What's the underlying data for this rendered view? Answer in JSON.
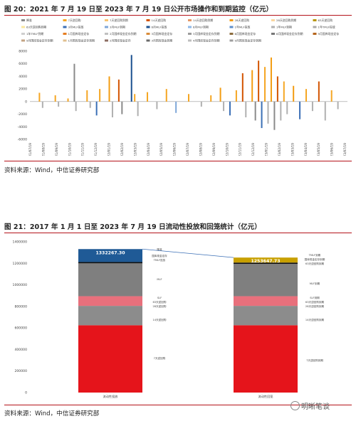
{
  "fig20": {
    "title": "图 20：2021 年 7 月 19 日至 2023 年 7 月 19 日公开市场操作和到期监控（亿元）",
    "source": "资料来源：Wind，中信证券研究部"
  },
  "fig21": {
    "title": "图 21：2017 年 1 月 1 日至 2023 年 7 月 19 日流动性投放和回笼统计（亿元）",
    "source": "资料来源：Wind，中信证券研究部"
  },
  "watermark": {
    "text": "明晰笔谈"
  },
  "chart_data": [
    {
      "type": "bar",
      "title": "",
      "legend_position": "top",
      "legend": [
        {
          "name": "降准",
          "color": "#8a8a8a"
        },
        {
          "name": "7天逆回购",
          "color": "#f5a623"
        },
        {
          "name": "7天逆回购到期",
          "color": "#f8c471"
        },
        {
          "name": "14天逆回购",
          "color": "#d35400"
        },
        {
          "name": "14天逆回购到期",
          "color": "#e59866"
        },
        {
          "name": "28天逆回购",
          "color": "#f39c12"
        },
        {
          "name": "28天逆回购到期",
          "color": "#fad7a0"
        },
        {
          "name": "63天逆回购",
          "color": "#b7950b"
        },
        {
          "name": "63天逆回购到期",
          "color": "#f9e79f"
        },
        {
          "name": "3月MLF投放",
          "color": "#3b6fb6"
        },
        {
          "name": "3月MLF到期",
          "color": "#7fa7d9"
        },
        {
          "name": "6月MLF投放",
          "color": "#1a4f8f"
        },
        {
          "name": "6月MLF到期",
          "color": "#8fb8e8"
        },
        {
          "name": "1年MLF投放",
          "color": "#5d8fcb"
        },
        {
          "name": "1年MLF到期",
          "color": "#b0b0b0"
        },
        {
          "name": "1年TMLF投放",
          "color": "#a9a9a9"
        },
        {
          "name": "1年TMLF到期",
          "color": "#cfcfcf"
        },
        {
          "name": "1月国库现金定存",
          "color": "#e67e22"
        },
        {
          "name": "2月国库现金定存到期",
          "color": "#c0c0c0"
        },
        {
          "name": "3月国库现金定存",
          "color": "#d98c3a"
        },
        {
          "name": "3月国库现金定存到期",
          "color": "#9c9c9c"
        },
        {
          "name": "6月国库现金定存",
          "color": "#8c6d3f"
        },
        {
          "name": "6月国库现金定存到期",
          "color": "#777777"
        },
        {
          "name": "9月国库现金定存",
          "color": "#b5651d"
        },
        {
          "name": "9月国库现金定存到期",
          "color": "#c4a484"
        },
        {
          "name": "1月国库现金定存到期",
          "color": "#e0c090"
        },
        {
          "name": "2月国库现金定存",
          "color": "#8d6e63"
        },
        {
          "name": "3月国库现金到期",
          "color": "#6b6b6b"
        },
        {
          "name": "4月国库现金定存到期",
          "color": "#bdbdbd"
        },
        {
          "name": "9月国库现金定存到期",
          "color": "#9e9e9e"
        }
      ],
      "ylim": [
        -6000,
        8000
      ],
      "yticks": [
        8000,
        6000,
        4000,
        2000,
        0,
        -2000,
        -4000,
        -6000
      ],
      "x_tick_labels": [
        "2021/07/19",
        "2021/08/19",
        "2021/09/19",
        "2021/10/19",
        "2021/11/19",
        "2021/12/19",
        "2022/01/19",
        "2022/02/19",
        "2022/03/19",
        "2022/04/19",
        "2022/05/19",
        "2022/06/19",
        "2022/07/19",
        "2022/08/19",
        "2022/09/19",
        "2022/10/19",
        "2022/11/19",
        "2022/12/19",
        "2023/01/19",
        "2023/02/19",
        "2023/03/19",
        "2023/04/19",
        "2023/05/19",
        "2023/06/19",
        "2023/07/19"
      ],
      "bars": [
        {
          "x": 0.03,
          "v": 1400,
          "c": "#f5a623"
        },
        {
          "x": 0.04,
          "v": -1000,
          "c": "#b0b0b0"
        },
        {
          "x": 0.08,
          "v": 1000,
          "c": "#f5a623"
        },
        {
          "x": 0.09,
          "v": -800,
          "c": "#b0b0b0"
        },
        {
          "x": 0.12,
          "v": 500,
          "c": "#f5a623"
        },
        {
          "x": 0.14,
          "v": 6000,
          "c": "#8a8a8a"
        },
        {
          "x": 0.145,
          "v": -1500,
          "c": "#b0b0b0"
        },
        {
          "x": 0.18,
          "v": 1800,
          "c": "#f5a623"
        },
        {
          "x": 0.19,
          "v": -1000,
          "c": "#b0b0b0"
        },
        {
          "x": 0.21,
          "v": -2200,
          "c": "#3b6fb6"
        },
        {
          "x": 0.22,
          "v": 2000,
          "c": "#f5a623"
        },
        {
          "x": 0.25,
          "v": 4000,
          "c": "#f39c12"
        },
        {
          "x": 0.26,
          "v": -2500,
          "c": "#b0b0b0"
        },
        {
          "x": 0.28,
          "v": 3500,
          "c": "#d35400"
        },
        {
          "x": 0.29,
          "v": -2000,
          "c": "#8a8a8a"
        },
        {
          "x": 0.32,
          "v": 7400,
          "c": "#1a4f8f"
        },
        {
          "x": 0.33,
          "v": 1200,
          "c": "#f5a623"
        },
        {
          "x": 0.34,
          "v": -2300,
          "c": "#b0b0b0"
        },
        {
          "x": 0.37,
          "v": 1500,
          "c": "#f5a623"
        },
        {
          "x": 0.4,
          "v": -1200,
          "c": "#b0b0b0"
        },
        {
          "x": 0.43,
          "v": 2000,
          "c": "#f5a623"
        },
        {
          "x": 0.46,
          "v": -1800,
          "c": "#7fa7d9"
        },
        {
          "x": 0.5,
          "v": 1200,
          "c": "#f5a623"
        },
        {
          "x": 0.54,
          "v": -800,
          "c": "#b0b0b0"
        },
        {
          "x": 0.57,
          "v": 1000,
          "c": "#f5a623"
        },
        {
          "x": 0.6,
          "v": 2200,
          "c": "#f39c12"
        },
        {
          "x": 0.61,
          "v": -1500,
          "c": "#b0b0b0"
        },
        {
          "x": 0.63,
          "v": -2200,
          "c": "#3b6fb6"
        },
        {
          "x": 0.65,
          "v": 1800,
          "c": "#f5a623"
        },
        {
          "x": 0.67,
          "v": 4500,
          "c": "#d35400"
        },
        {
          "x": 0.68,
          "v": -2500,
          "c": "#b0b0b0"
        },
        {
          "x": 0.7,
          "v": 5000,
          "c": "#f39c12"
        },
        {
          "x": 0.71,
          "v": -3000,
          "c": "#8a8a8a"
        },
        {
          "x": 0.72,
          "v": 6500,
          "c": "#d35400"
        },
        {
          "x": 0.73,
          "v": -4200,
          "c": "#3b6fb6"
        },
        {
          "x": 0.74,
          "v": 5500,
          "c": "#f5a623"
        },
        {
          "x": 0.75,
          "v": -3500,
          "c": "#b0b0b0"
        },
        {
          "x": 0.76,
          "v": 7000,
          "c": "#f39c12"
        },
        {
          "x": 0.77,
          "v": -4500,
          "c": "#8a8a8a"
        },
        {
          "x": 0.78,
          "v": 4000,
          "c": "#d35400"
        },
        {
          "x": 0.79,
          "v": -3000,
          "c": "#b0b0b0"
        },
        {
          "x": 0.8,
          "v": 3200,
          "c": "#f5a623"
        },
        {
          "x": 0.81,
          "v": -2000,
          "c": "#b0b0b0"
        },
        {
          "x": 0.83,
          "v": 2500,
          "c": "#f39c12"
        },
        {
          "x": 0.85,
          "v": -2800,
          "c": "#3b6fb6"
        },
        {
          "x": 0.87,
          "v": 2000,
          "c": "#f5a623"
        },
        {
          "x": 0.89,
          "v": -1500,
          "c": "#b0b0b0"
        },
        {
          "x": 0.91,
          "v": 3200,
          "c": "#d35400"
        },
        {
          "x": 0.93,
          "v": -3000,
          "c": "#b0b0b0"
        },
        {
          "x": 0.95,
          "v": 1800,
          "c": "#f5a623"
        },
        {
          "x": 0.97,
          "v": -1200,
          "c": "#b0b0b0"
        }
      ]
    },
    {
      "type": "bar",
      "title": "",
      "ylim": [
        0,
        1400000
      ],
      "yticks": [
        1400000,
        1200000,
        1000000,
        800000,
        600000,
        400000,
        200000,
        0
      ],
      "categories": [
        "流动性投放",
        "流动性回笼"
      ],
      "totals": [
        1332267.3,
        1253647.73
      ],
      "total_labels": [
        "1332267.30",
        "1253647.73"
      ],
      "stacks": [
        {
          "category": "流动性投放",
          "segments": [
            {
              "name": "7天逆回购",
              "value": 625000,
              "color": "#e5141b"
            },
            {
              "name": "14天逆回购",
              "value": 180000,
              "color": "#8c8c8c"
            },
            {
              "name": "SLF",
              "value": 90000,
              "color": "#e8707c"
            },
            {
              "name": "MLF",
              "value": 305000,
              "color": "#7f7f7f"
            },
            {
              "name": "TMLF投放",
              "value": 12000,
              "color": "#111111"
            },
            {
              "name": "国库现金定存",
              "value": 120267.3,
              "color": "#1f5a96"
            }
          ]
        },
        {
          "category": "流动性回笼",
          "segments": [
            {
              "name": "7天逆回购到期",
              "value": 625000,
              "color": "#e5141b"
            },
            {
              "name": "14天逆回购到期",
              "value": 180000,
              "color": "#8c8c8c"
            },
            {
              "name": "SLF到期",
              "value": 90000,
              "color": "#e8707c"
            },
            {
              "name": "MLF到期",
              "value": 300000,
              "color": "#7f7f7f"
            },
            {
              "name": "TMLF到期",
              "value": 12000,
              "color": "#111111"
            },
            {
              "name": "国库现金定存到期",
              "value": 46647.73,
              "color": "#c8a000"
            }
          ]
        }
      ],
      "left_labels": [
        "降准",
        "国库现金定存",
        "TMLF投放",
        "MLF",
        "SLF",
        "63天逆回购",
        "28天逆回购",
        "14天逆回购",
        "7天逆回购"
      ],
      "right_labels": [
        "TMLF到期",
        "国库现金定存到期",
        "63天逆回购到期",
        "MLF到期",
        "SLF到期",
        "63天逆回购到期",
        "28天逆回购到期",
        "14天逆回购到期",
        "7天逆回购到期"
      ]
    }
  ]
}
